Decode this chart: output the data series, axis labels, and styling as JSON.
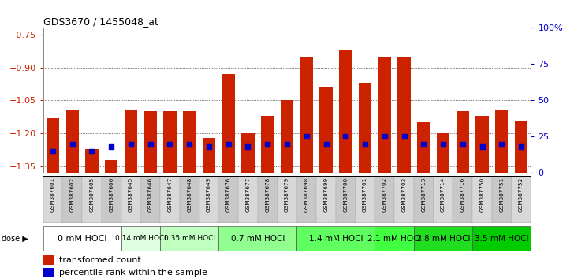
{
  "title": "GDS3670 / 1455048_at",
  "samples": [
    "GSM387601",
    "GSM387602",
    "GSM387605",
    "GSM387606",
    "GSM387645",
    "GSM387646",
    "GSM387647",
    "GSM387648",
    "GSM387649",
    "GSM387676",
    "GSM387677",
    "GSM387678",
    "GSM387679",
    "GSM387698",
    "GSM387699",
    "GSM387700",
    "GSM387701",
    "GSM387702",
    "GSM387703",
    "GSM387713",
    "GSM387714",
    "GSM387716",
    "GSM387750",
    "GSM387751",
    "GSM387752"
  ],
  "transformed_count": [
    -1.13,
    -1.09,
    -1.27,
    -1.32,
    -1.09,
    -1.1,
    -1.1,
    -1.1,
    -1.22,
    -0.93,
    -1.2,
    -1.12,
    -1.05,
    -0.85,
    -0.99,
    -0.82,
    -0.97,
    -0.85,
    -0.85,
    -1.15,
    -1.2,
    -1.1,
    -1.12,
    -1.09,
    -1.14
  ],
  "percentile_rank": [
    15,
    20,
    15,
    18,
    20,
    20,
    20,
    20,
    18,
    20,
    18,
    20,
    20,
    25,
    20,
    25,
    20,
    25,
    25,
    20,
    20,
    20,
    18,
    20,
    18
  ],
  "dose_groups": [
    {
      "label": "0 mM HOCl",
      "start": 0,
      "end": 4,
      "color": "#ffffff",
      "fontsize": 8
    },
    {
      "label": "0.14 mM HOCl",
      "start": 4,
      "end": 6,
      "color": "#e0ffe0",
      "fontsize": 6.5
    },
    {
      "label": "0.35 mM HOCl",
      "start": 6,
      "end": 9,
      "color": "#c0ffc0",
      "fontsize": 6.5
    },
    {
      "label": "0.7 mM HOCl",
      "start": 9,
      "end": 13,
      "color": "#90ff90",
      "fontsize": 7.5
    },
    {
      "label": "1.4 mM HOCl",
      "start": 13,
      "end": 17,
      "color": "#60ff60",
      "fontsize": 7.5
    },
    {
      "label": "2.1 mM HOCl",
      "start": 17,
      "end": 19,
      "color": "#40ff40",
      "fontsize": 7.5
    },
    {
      "label": "2.8 mM HOCl",
      "start": 19,
      "end": 22,
      "color": "#20dd20",
      "fontsize": 7.5
    },
    {
      "label": "3.5 mM HOCl",
      "start": 22,
      "end": 25,
      "color": "#00cc00",
      "fontsize": 7.5
    }
  ],
  "ylim_left": [
    -1.38,
    -0.72
  ],
  "yticks_left": [
    -1.35,
    -1.2,
    -1.05,
    -0.9,
    -0.75
  ],
  "ylim_right": [
    0,
    100
  ],
  "yticks_right": [
    0,
    25,
    50,
    75,
    100
  ],
  "bar_color": "#cc2200",
  "percentile_color": "#0000cc",
  "bg_color": "#ffffff",
  "axis_label_color_left": "#cc2200",
  "axis_label_color_right": "#0000cc",
  "grid_color": "#000000"
}
